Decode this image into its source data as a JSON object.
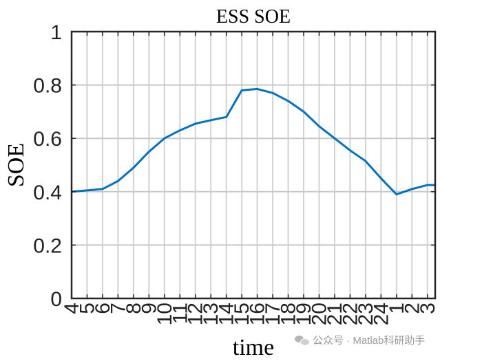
{
  "chart_data": {
    "type": "line",
    "title": "ESS SOE",
    "xlabel": "time",
    "ylabel": "SOE",
    "ylim": [
      0,
      1
    ],
    "yticks": [
      "0",
      "0.2",
      "0.4",
      "0.6",
      "0.8",
      "1"
    ],
    "categories": [
      "4",
      "5",
      "6",
      "7",
      "8",
      "9",
      "10",
      "11",
      "12",
      "13",
      "14",
      "15",
      "16",
      "17",
      "18",
      "19",
      "20",
      "21",
      "22",
      "23",
      "24",
      "1",
      "2",
      "3"
    ],
    "grid": true,
    "series": [
      {
        "color": "#0072bd",
        "values": [
          0.4,
          0.405,
          0.41,
          0.44,
          0.49,
          0.55,
          0.6,
          0.63,
          0.655,
          0.668,
          0.68,
          0.78,
          0.785,
          0.77,
          0.74,
          0.7,
          0.645,
          0.6,
          0.555,
          0.515,
          0.45,
          0.39,
          0.41,
          0.425
        ]
      }
    ]
  },
  "watermark": {
    "icon": "wechat-icon",
    "text": "公众号 · Matlab科研助手"
  }
}
